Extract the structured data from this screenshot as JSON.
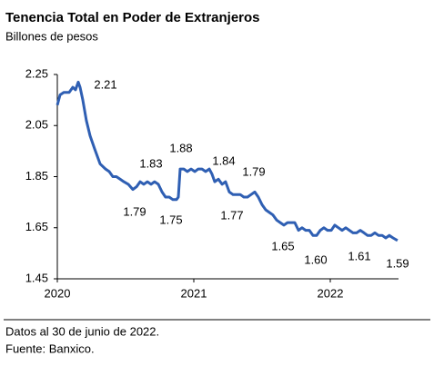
{
  "chart_data": {
    "type": "line",
    "title": "Tenencia Total en Poder de Extranjeros",
    "subtitle": "Billones de pesos",
    "x": [
      2020.0,
      2020.02,
      2020.047,
      2020.087,
      2020.113,
      2020.133,
      2020.153,
      2020.167,
      2020.187,
      2020.213,
      2020.24,
      2020.273,
      2020.313,
      2020.353,
      2020.38,
      2020.407,
      2020.433,
      2020.46,
      2020.487,
      2020.52,
      2020.553,
      2020.58,
      2020.607,
      2020.633,
      2020.66,
      2020.687,
      2020.713,
      2020.74,
      2020.767,
      2020.793,
      2020.82,
      2020.847,
      2020.873,
      2020.887,
      2020.9,
      2020.927,
      2020.953,
      2020.98,
      2021.007,
      2021.033,
      2021.06,
      2021.087,
      2021.113,
      2021.133,
      2021.153,
      2021.18,
      2021.207,
      2021.233,
      2021.26,
      2021.287,
      2021.313,
      2021.34,
      2021.367,
      2021.393,
      2021.42,
      2021.447,
      2021.473,
      2021.5,
      2021.527,
      2021.553,
      2021.58,
      2021.607,
      2021.633,
      2021.66,
      2021.687,
      2021.713,
      2021.74,
      2021.767,
      2021.793,
      2021.82,
      2021.847,
      2021.873,
      2021.9,
      2021.927,
      2021.953,
      2021.98,
      2022.007,
      2022.033,
      2022.06,
      2022.087,
      2022.113,
      2022.14,
      2022.167,
      2022.193,
      2022.22,
      2022.247,
      2022.273,
      2022.3,
      2022.327,
      2022.353,
      2022.38,
      2022.407,
      2022.433,
      2022.46,
      2022.493
    ],
    "values": [
      2.13,
      2.17,
      2.18,
      2.18,
      2.2,
      2.19,
      2.22,
      2.2,
      2.15,
      2.07,
      2.01,
      1.96,
      1.9,
      1.88,
      1.87,
      1.85,
      1.85,
      1.84,
      1.83,
      1.82,
      1.8,
      1.81,
      1.83,
      1.82,
      1.83,
      1.82,
      1.83,
      1.82,
      1.79,
      1.77,
      1.77,
      1.76,
      1.76,
      1.77,
      1.88,
      1.88,
      1.87,
      1.88,
      1.87,
      1.88,
      1.88,
      1.87,
      1.88,
      1.86,
      1.83,
      1.84,
      1.82,
      1.83,
      1.79,
      1.78,
      1.78,
      1.78,
      1.77,
      1.77,
      1.78,
      1.79,
      1.77,
      1.74,
      1.72,
      1.71,
      1.7,
      1.68,
      1.67,
      1.66,
      1.67,
      1.67,
      1.67,
      1.64,
      1.65,
      1.64,
      1.64,
      1.62,
      1.62,
      1.64,
      1.65,
      1.64,
      1.64,
      1.66,
      1.65,
      1.64,
      1.65,
      1.64,
      1.63,
      1.63,
      1.64,
      1.63,
      1.62,
      1.62,
      1.63,
      1.62,
      1.62,
      1.61,
      1.62,
      1.61,
      1.6
    ],
    "color": "#2f5fb3",
    "xlim": [
      2020,
      2022.5
    ],
    "xticks": [
      2020,
      2021,
      2022
    ],
    "ylim": [
      1.45,
      2.25
    ],
    "yticks": [
      1.45,
      1.65,
      1.85,
      2.05,
      2.25
    ],
    "annotations": [
      "2.21",
      "1.83",
      "1.79",
      "1.75",
      "1.88",
      "1.84",
      "1.79",
      "1.77",
      "1.65",
      "1.60",
      "1.61",
      "1.59"
    ],
    "notes": [
      "Datos al 30 de junio de 2022.",
      "Fuente: Banxico."
    ]
  }
}
